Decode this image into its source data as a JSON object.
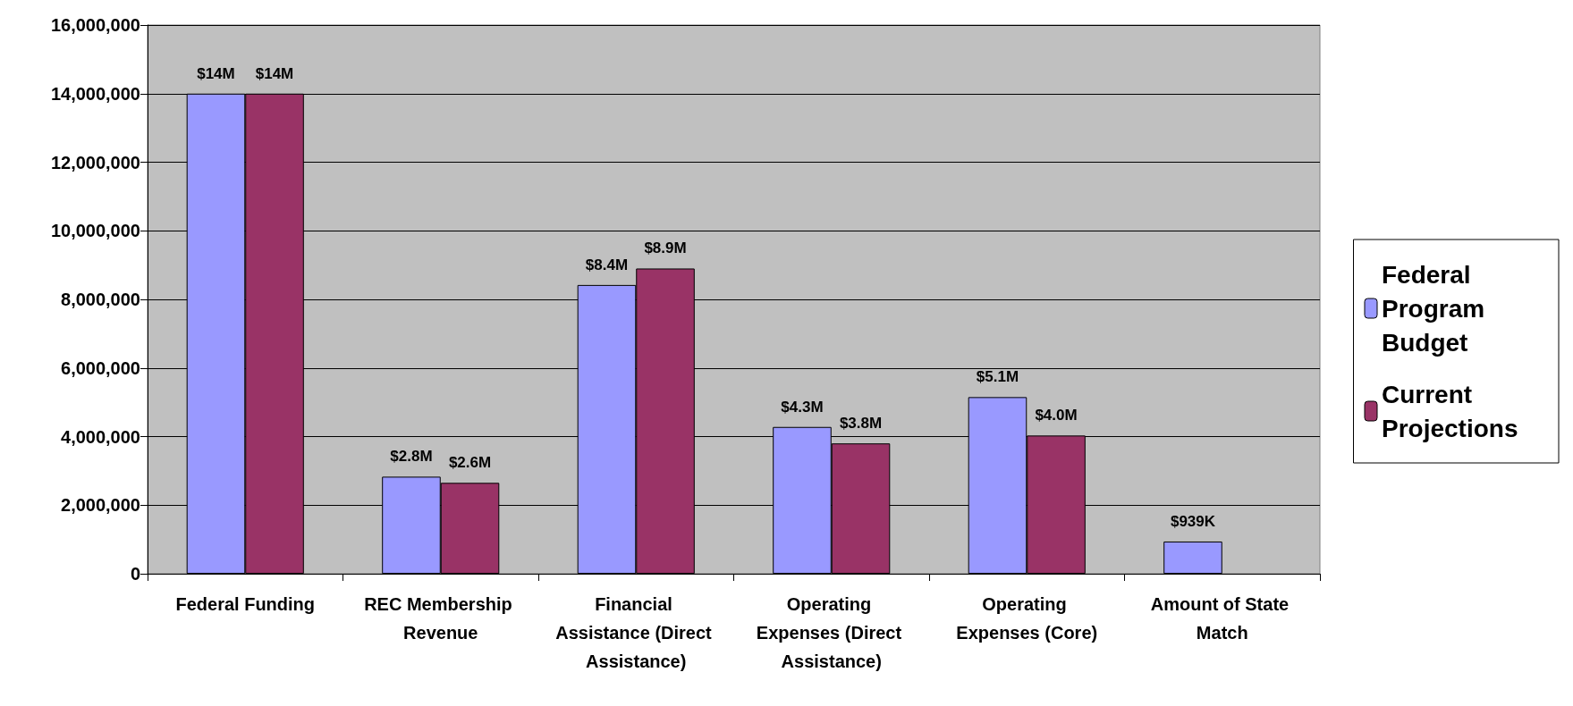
{
  "chart_data": {
    "type": "bar",
    "categories": [
      "Federal Funding",
      "REC Membership Revenue",
      "Financial Assistance (Direct Assistance)",
      "Operating Expenses (Direct Assistance)",
      "Operating Expenses (Core)",
      "Amount of State Match"
    ],
    "series": [
      {
        "name": "Federal Program Budget",
        "color": "#9999ff",
        "values": [
          14000000,
          2830000,
          8420000,
          4280000,
          5150000,
          939000
        ],
        "value_labels": [
          "$14M",
          "$2.8M",
          "$8.4M",
          "$4.3M",
          "$5.1M",
          "$939K"
        ]
      },
      {
        "name": "Current Projections",
        "color": "#993366",
        "values": [
          14000000,
          2650000,
          8900000,
          3800000,
          4030000,
          null
        ],
        "value_labels": [
          "$14M",
          "$2.6M",
          "$8.9M",
          "$3.8M",
          "$4.0M",
          null
        ]
      }
    ],
    "ylim": [
      0,
      16000000
    ],
    "yticks": [
      {
        "value": 0,
        "label": "0"
      },
      {
        "value": 2000000,
        "label": "2,000,000"
      },
      {
        "value": 4000000,
        "label": "4,000,000"
      },
      {
        "value": 6000000,
        "label": "6,000,000"
      },
      {
        "value": 8000000,
        "label": "8,000,000"
      },
      {
        "value": 10000000,
        "label": "10,000,000"
      },
      {
        "value": 12000000,
        "label": "12,000,000"
      },
      {
        "value": 14000000,
        "label": "14,000,000"
      },
      {
        "value": 16000000,
        "label": "16,000,000"
      }
    ],
    "grid": "y",
    "legend": "right"
  }
}
